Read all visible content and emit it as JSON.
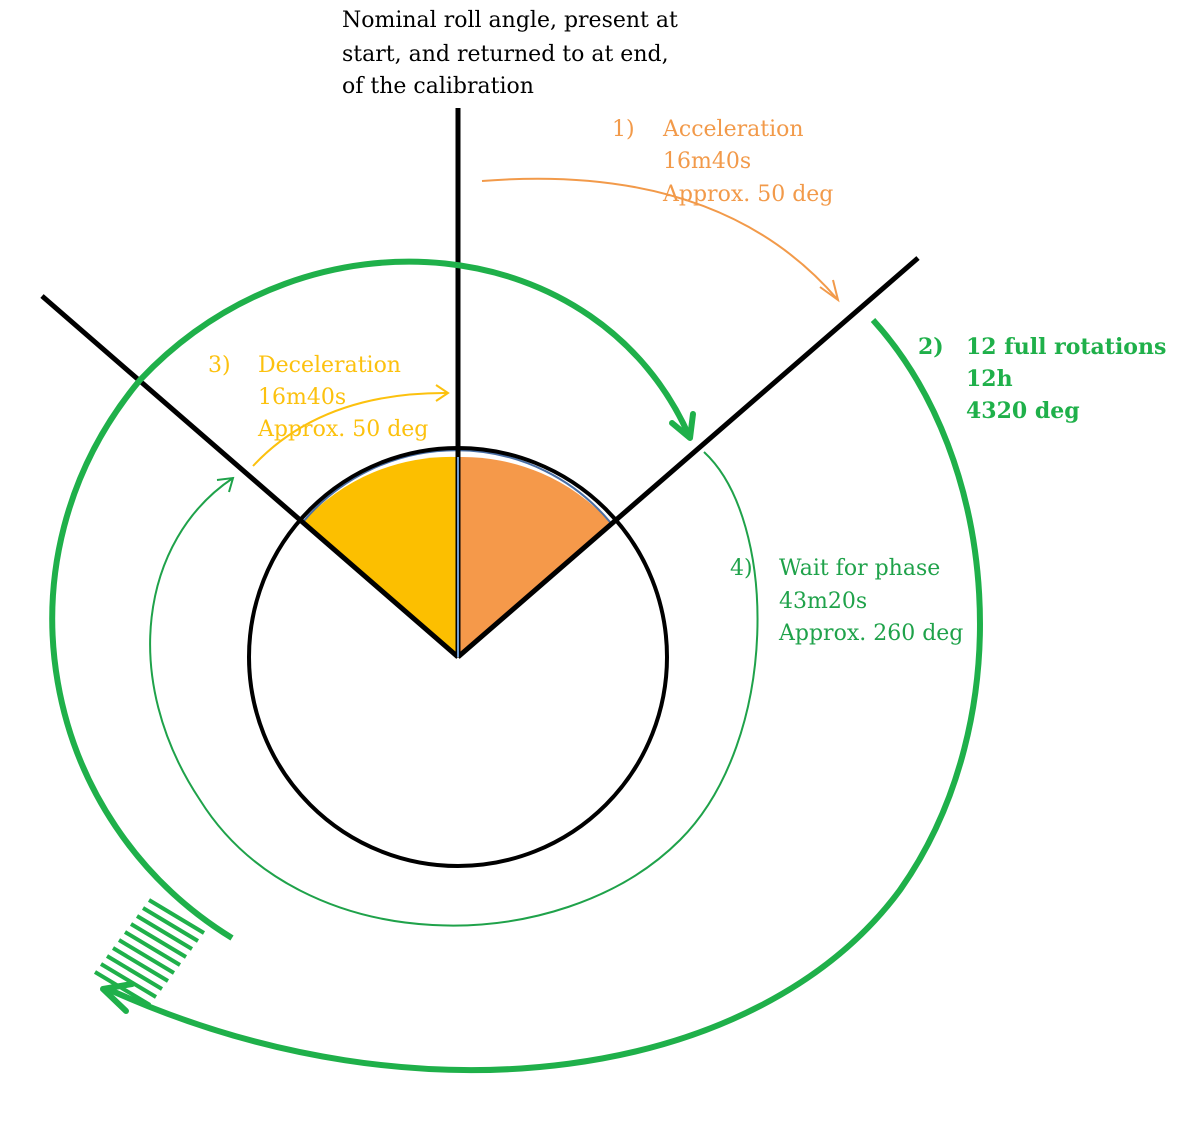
{
  "caption": {
    "lines": [
      "Nominal roll angle, present at",
      "start, and returned to at end,",
      "of the calibration"
    ]
  },
  "phases": [
    {
      "number": "1)",
      "lines": [
        "Acceleration",
        "16m40s",
        "Approx. 50 deg"
      ],
      "color": "#f29a4a"
    },
    {
      "number": "2)",
      "lines": [
        "12 full rotations",
        "12h",
        "4320 deg"
      ],
      "color": "#1fb04a"
    },
    {
      "number": "3)",
      "lines": [
        "Deceleration",
        "16m40s",
        "Approx. 50 deg"
      ],
      "color": "#fcc10e"
    },
    {
      "number": "4)",
      "lines": [
        "Wait for phase",
        "43m20s",
        "Approx. 260 deg"
      ],
      "color": "#1fa24a"
    }
  ],
  "colors": {
    "acceleration_wedge": "#f5994a",
    "deceleration_wedge": "#fcbf00",
    "rotation_arc": "#1fb04a",
    "wait_arc": "#1fa24a",
    "lines": "#000000"
  },
  "icons": {
    "arrowheads": "arrowhead-icon",
    "multi_turn_marker": "hatch-marks-icon"
  }
}
